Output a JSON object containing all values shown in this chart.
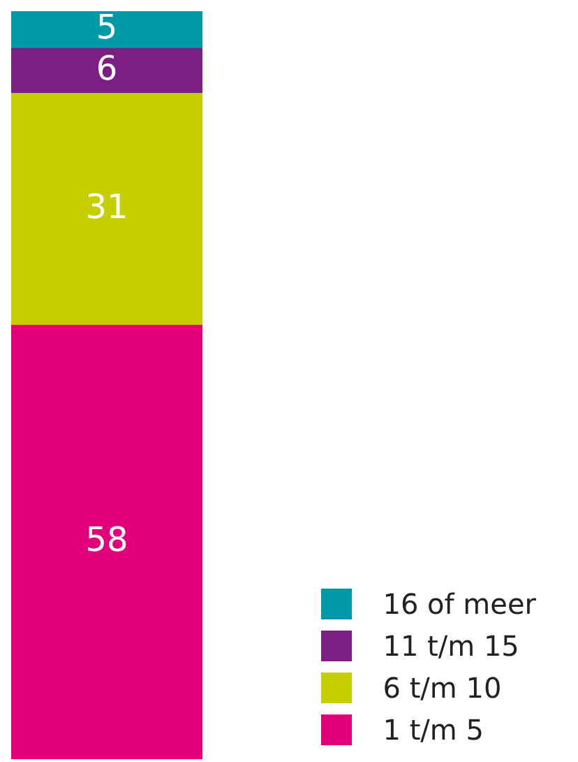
{
  "chart_data": {
    "type": "bar",
    "stacked": true,
    "categories": [
      null
    ],
    "series": [
      {
        "name": "1 t/m 5",
        "color": "#e2007a",
        "values": [
          58
        ]
      },
      {
        "name": "6 t/m 10",
        "color": "#c5cf00",
        "values": [
          31
        ]
      },
      {
        "name": "11 t/m 15",
        "color": "#7b1f82",
        "values": [
          6
        ]
      },
      {
        "name": "16 of meer",
        "color": "#0099a8",
        "values": [
          5
        ]
      }
    ],
    "data_labels": true,
    "legend": "bottom right",
    "tick_labels": false
  }
}
